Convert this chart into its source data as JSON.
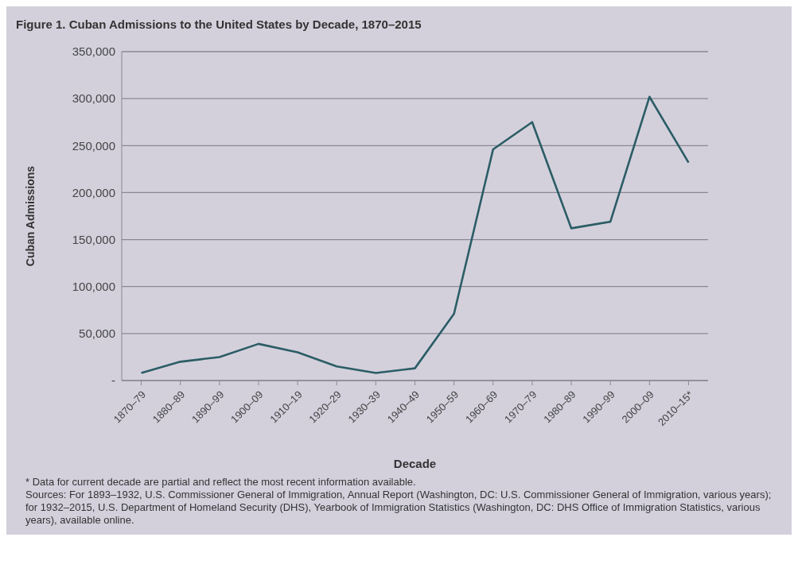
{
  "chart_data": {
    "type": "line",
    "title": "Figure 1. Cuban Admissions to the United States by Decade, 1870–2015",
    "xlabel": "Decade",
    "ylabel": "Cuban Admissions",
    "categories": [
      "1870–79",
      "1880–89",
      "1890–99",
      "1900–09",
      "1910–19",
      "1920–29",
      "1930–39",
      "1940–49",
      "1950–59",
      "1960–69",
      "1970–79",
      "1980–89",
      "1990–99",
      "2000–09",
      "2010–15*"
    ],
    "series": [
      {
        "color": "#2b5d66",
        "values": [
          8000,
          20000,
          25000,
          39000,
          30000,
          15000,
          8000,
          13000,
          71000,
          246000,
          275000,
          162000,
          169000,
          302000,
          232000
        ]
      }
    ],
    "ylim": [
      0,
      350000
    ],
    "yticks": [
      {
        "value": 0,
        "label": "-"
      },
      {
        "value": 50000,
        "label": "50,000"
      },
      {
        "value": 100000,
        "label": "100,000"
      },
      {
        "value": 150000,
        "label": "150,000"
      },
      {
        "value": 200000,
        "label": "200,000"
      },
      {
        "value": 250000,
        "label": "250,000"
      },
      {
        "value": 300000,
        "label": "300,000"
      },
      {
        "value": 350000,
        "label": "350,000"
      }
    ],
    "grid": "y",
    "legend": false,
    "marker": "none",
    "line_style": "solid",
    "annotations": [
      "* Data for current decade are partial and reflect the most recent information available.",
      "Sources: For 1893–1932, U.S. Commissioner General of Immigration, Annual Report (Washington, DC: U.S. Commissioner General of Immigration, various years); for 1932–2015, U.S. Department of Homeland Security (DHS), Yearbook of Immigration Statistics (Washington, DC: DHS Office of Immigration Statistics, various years), available online."
    ]
  }
}
